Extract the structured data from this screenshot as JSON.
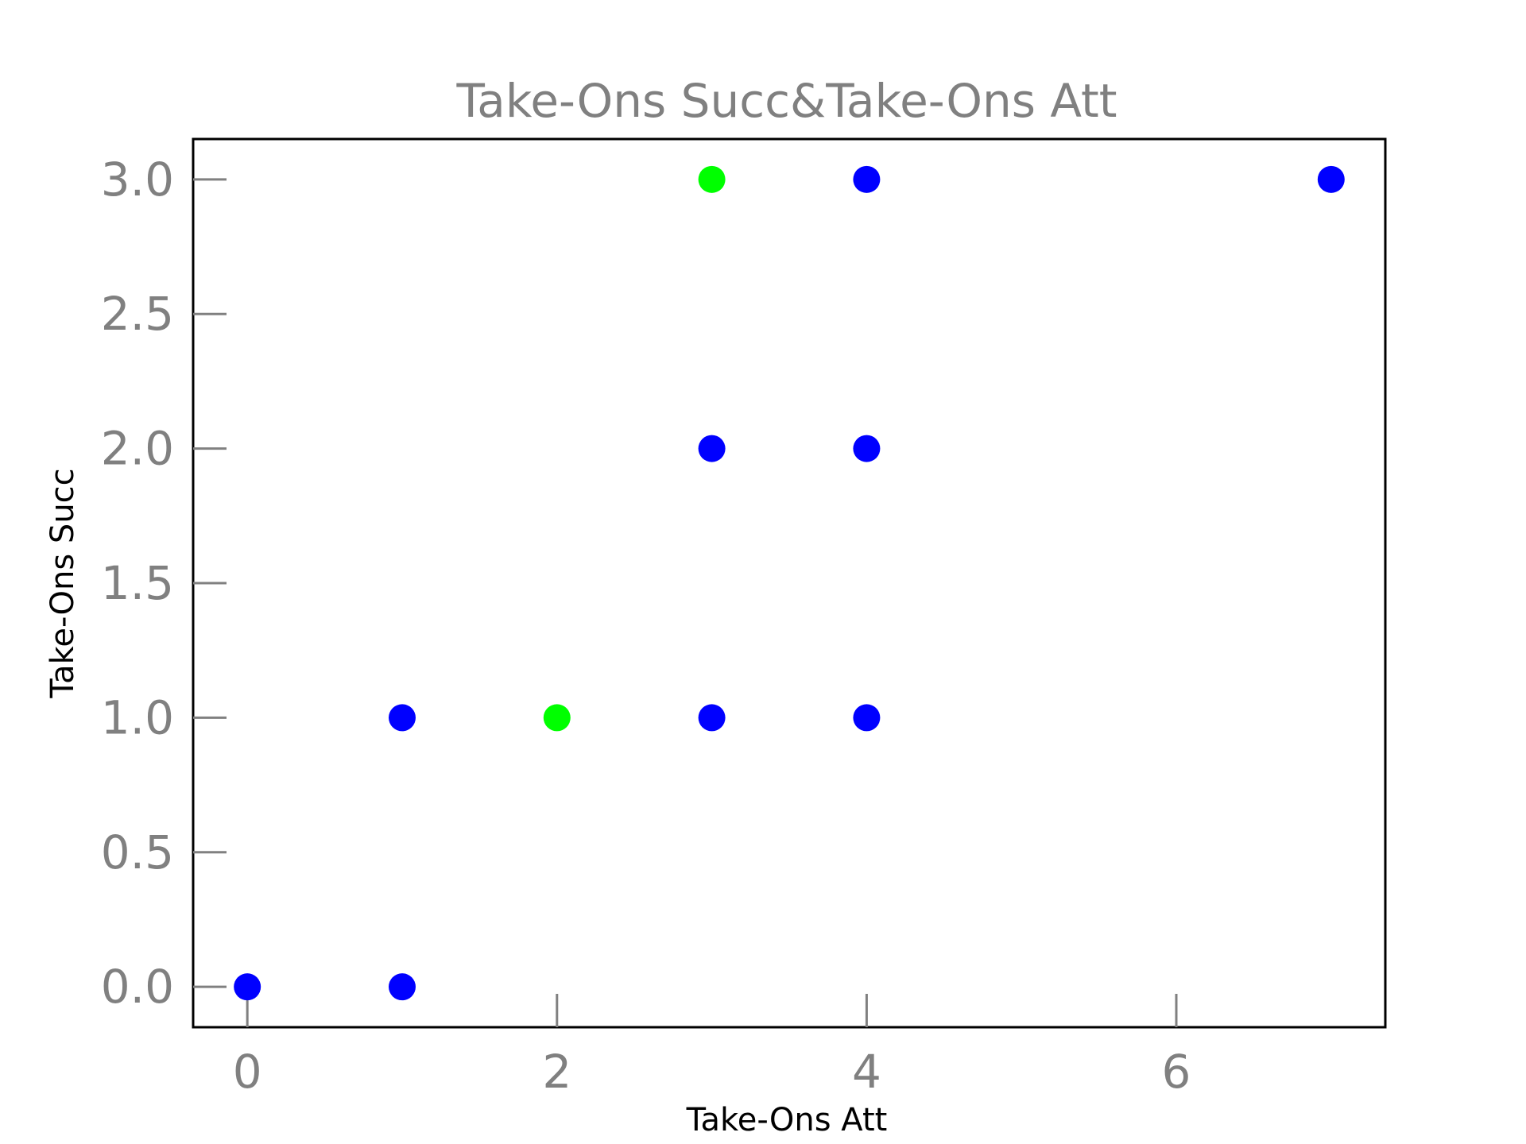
{
  "chart_data": {
    "type": "scatter",
    "title": "Take-Ons Succ&Take-Ons Att",
    "xlabel": "Take-Ons Att",
    "ylabel": "Take-Ons Succ",
    "xlim": [
      -0.35,
      7.35
    ],
    "ylim": [
      -0.15,
      3.15
    ],
    "xticks": [
      0,
      2,
      4,
      6
    ],
    "xtick_labels": [
      "0",
      "2",
      "4",
      "6"
    ],
    "yticks": [
      0.0,
      0.5,
      1.0,
      1.5,
      2.0,
      2.5,
      3.0
    ],
    "ytick_labels": [
      "0.0",
      "0.5",
      "1.0",
      "1.5",
      "2.0",
      "2.5",
      "3.0"
    ],
    "grid": false,
    "legend": "none",
    "colors": {
      "blue": "#0000ff",
      "green": "#00ff00"
    },
    "points": [
      {
        "x": 0,
        "y": 0,
        "color": "#0000ff"
      },
      {
        "x": 1,
        "y": 0,
        "color": "#0000ff"
      },
      {
        "x": 1,
        "y": 1,
        "color": "#0000ff"
      },
      {
        "x": 2,
        "y": 1,
        "color": "#00ff00"
      },
      {
        "x": 3,
        "y": 1,
        "color": "#0000ff"
      },
      {
        "x": 3,
        "y": 2,
        "color": "#0000ff"
      },
      {
        "x": 3,
        "y": 3,
        "color": "#00ff00"
      },
      {
        "x": 4,
        "y": 1,
        "color": "#0000ff"
      },
      {
        "x": 4,
        "y": 2,
        "color": "#0000ff"
      },
      {
        "x": 4,
        "y": 3,
        "color": "#0000ff"
      },
      {
        "x": 7,
        "y": 3,
        "color": "#0000ff"
      }
    ]
  }
}
